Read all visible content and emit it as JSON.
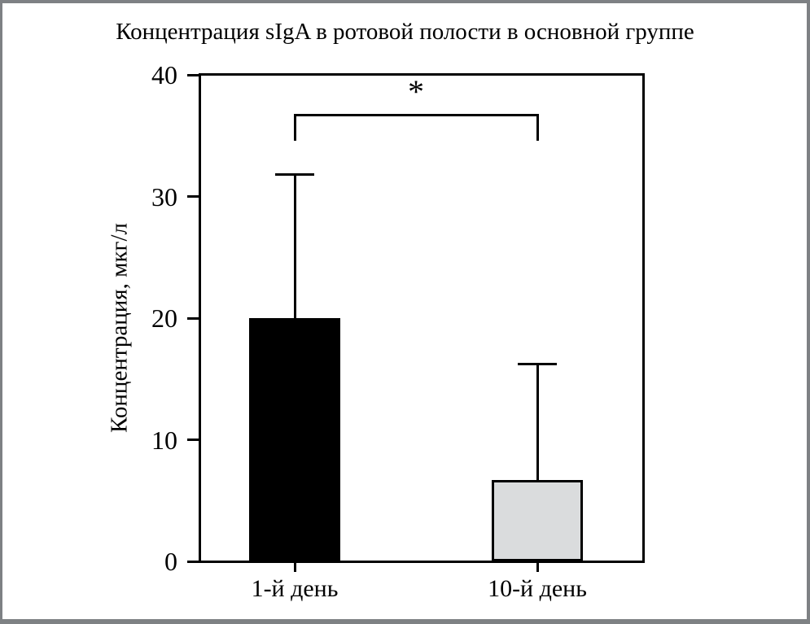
{
  "chart_data": {
    "type": "bar",
    "title": "Концентрация sIgA в ротовой полости в основной группе",
    "xlabel": "",
    "ylabel": "Концентрация, мкг/л",
    "ylim": [
      0,
      40
    ],
    "yticks": [
      0,
      10,
      20,
      30,
      40
    ],
    "categories": [
      "1-й день",
      "10-й день"
    ],
    "values": [
      20,
      6.7
    ],
    "error_upper": [
      11.8,
      9.5
    ],
    "bar_fills": [
      "#000000",
      "#dadcdd"
    ],
    "bar_edge_color": "#000000",
    "grid": false,
    "legend": null,
    "significance": {
      "symbol": "*",
      "between": [
        0,
        1
      ]
    }
  },
  "colors": {
    "frame_border": "#7e8184",
    "axis": "#000000",
    "background": "#ffffff"
  }
}
